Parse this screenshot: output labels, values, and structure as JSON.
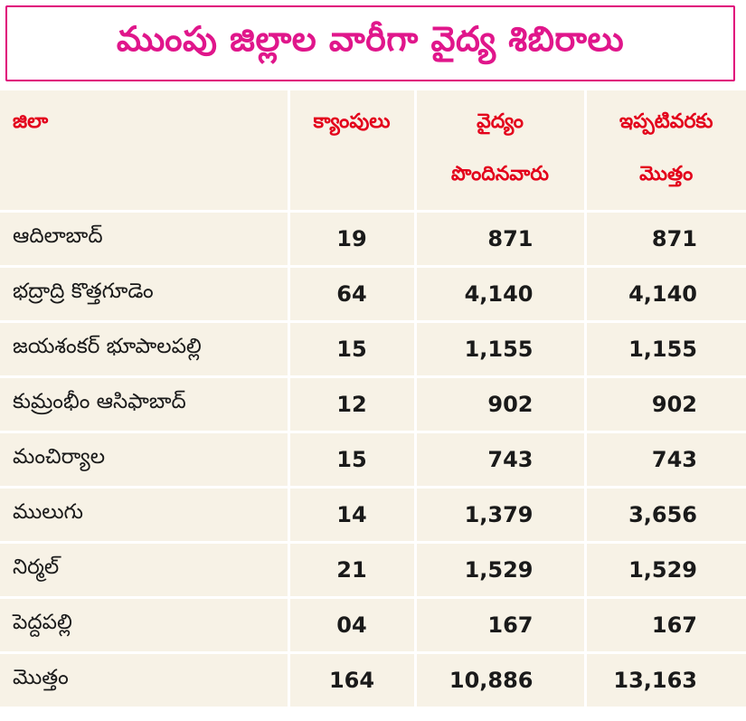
{
  "title": "ముంపు జిల్లాల వారీగా వైద్య శిబిరాలు",
  "headers": {
    "district": "జిలా",
    "camps": "క్యాంపులు",
    "treated_line1": "వైద్యం",
    "treated_line2": "పొందినవారు",
    "total_line1": "ఇప్పటివరకు",
    "total_line2": "మొత్తం"
  },
  "rows": [
    {
      "district": "ఆదిలాబాద్",
      "camps": "19",
      "treated": "871",
      "total": "871"
    },
    {
      "district": "భద్రాద్రి కొత్తగూడెం",
      "camps": "64",
      "treated": "4,140",
      "total": "4,140"
    },
    {
      "district": "జయశంకర్ భూపాలపల్లి",
      "camps": "15",
      "treated": "1,155",
      "total": "1,155"
    },
    {
      "district": "కుమ్రంభీం ఆసిఫాబాద్",
      "camps": "12",
      "treated": "902",
      "total": "902"
    },
    {
      "district": "మంచిర్యాల",
      "camps": "15",
      "treated": "743",
      "total": "743"
    },
    {
      "district": "ములుగు",
      "camps": "14",
      "treated": "1,379",
      "total": "3,656"
    },
    {
      "district": "నిర్మల్",
      "camps": "21",
      "treated": "1,529",
      "total": "1,529"
    },
    {
      "district": "పెద్దపల్లి",
      "camps": "04",
      "treated": "167",
      "total": "167"
    },
    {
      "district": "మొత్తం",
      "camps": "164",
      "treated": "10,886",
      "total": "13,163"
    }
  ],
  "colors": {
    "title": "#e0168b",
    "title_border": "#e0007a",
    "header_text": "#e3001b",
    "cell_background": "#f7f2e6",
    "grid_lines": "#ffffff"
  }
}
